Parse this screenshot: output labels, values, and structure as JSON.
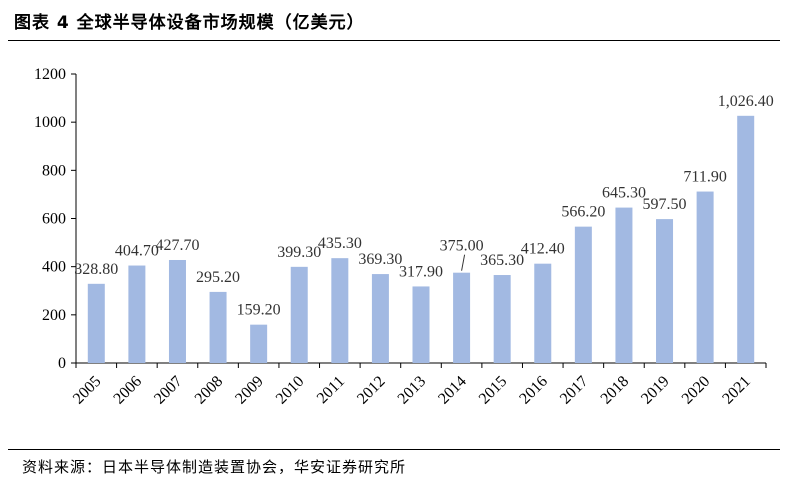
{
  "header": {
    "title": "图表 4 全球半导体设备市场规模（亿美元）"
  },
  "footer": {
    "source": "资料来源：日本半导体制造装置协会，华安证券研究所"
  },
  "colors": {
    "bar": "#a2b9e2",
    "axis": "#000000",
    "text": "#000000"
  },
  "chart_data": {
    "type": "bar",
    "title": "图表 4 全球半导体设备市场规模（亿美元）",
    "xlabel": "",
    "ylabel": "",
    "ylim": [
      0,
      1200
    ],
    "yticks": [
      0,
      200,
      400,
      600,
      800,
      1000,
      1200
    ],
    "yticklabels": [
      "0",
      "200",
      "400",
      "600",
      "800",
      "1000",
      "1200"
    ],
    "grid": false,
    "categories": [
      "2005",
      "2006",
      "2007",
      "2008",
      "2009",
      "2010",
      "2011",
      "2012",
      "2013",
      "2014",
      "2015",
      "2016",
      "2017",
      "2018",
      "2019",
      "2020",
      "2021"
    ],
    "values": [
      328.8,
      404.7,
      427.7,
      295.2,
      159.2,
      399.3,
      435.3,
      369.3,
      317.9,
      375.0,
      365.3,
      412.4,
      566.2,
      645.3,
      597.5,
      711.9,
      1026.4
    ],
    "data_labels": [
      "328.80",
      "404.70",
      "427.70",
      "295.20",
      "159.20",
      "399.30",
      "435.30",
      "369.30",
      "317.90",
      "375.00",
      "365.30",
      "412.40",
      "566.20",
      "645.30",
      "597.50",
      "711.90",
      "1,026.40"
    ]
  }
}
